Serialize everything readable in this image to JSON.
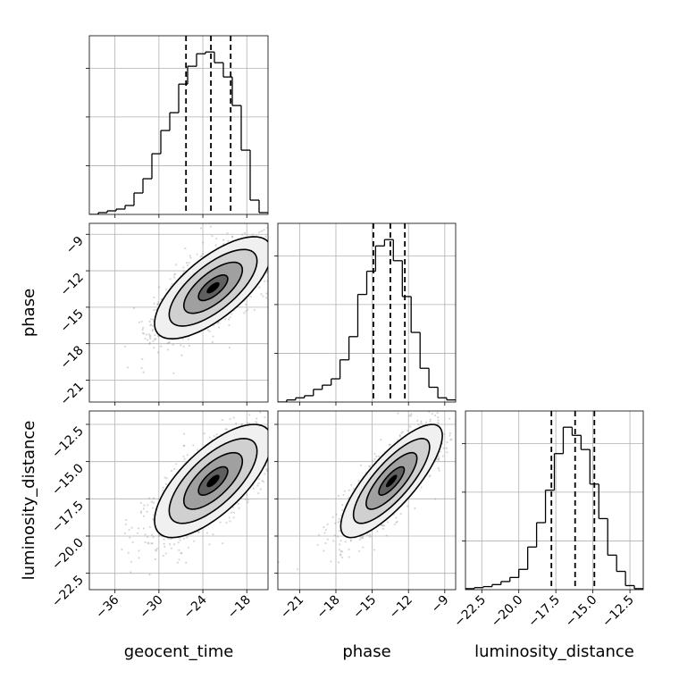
{
  "chart_data": {
    "type": "corner",
    "parameters": [
      "geocent_time",
      "phase",
      "luminosity_distance"
    ],
    "axis_labels": {
      "x": [
        "geocent_time",
        "phase",
        "luminosity_distance"
      ],
      "y": [
        "phase",
        "luminosity_distance"
      ]
    },
    "grid": true,
    "colors": {
      "line": "#000000",
      "samples": "#8c8c8c",
      "grid": "#b0b0b0"
    },
    "ranges": {
      "geocent_time": [
        -39.5,
        -15.1
      ],
      "phase": [
        -22.8,
        -8.1
      ],
      "luminosity_distance": [
        -23.6,
        -11.6
      ]
    },
    "ticks": {
      "geocent_time": {
        "values": [
          -36,
          -30,
          -24,
          -18
        ],
        "labels": [
          "−36",
          "−30",
          "−24",
          "−18"
        ]
      },
      "phase": {
        "values": [
          -21,
          -18,
          -15,
          -12,
          -9
        ],
        "labels": [
          "−21",
          "−18",
          "−15",
          "−12",
          "−9"
        ]
      },
      "luminosity_distance": {
        "values": [
          -22.5,
          -20.0,
          -17.5,
          -15.0,
          -12.5
        ],
        "labels": [
          "−22.5",
          "−20.0",
          "−17.5",
          "−15.0",
          "−12.5"
        ]
      }
    },
    "marginals": [
      {
        "parameter": "geocent_time",
        "quantiles": [
          -26.3,
          -22.9,
          -20.2
        ],
        "bins": [
          -39.5,
          -38.28,
          -37.06,
          -35.84,
          -34.62,
          -33.4,
          -32.18,
          -30.96,
          -29.74,
          -28.52,
          -27.3,
          -26.08,
          -24.86,
          -23.64,
          -22.42,
          -21.2,
          -19.98,
          -18.76,
          -17.54,
          -16.32,
          -15.1
        ],
        "counts": [
          0,
          0.01,
          0.02,
          0.03,
          0.05,
          0.12,
          0.2,
          0.34,
          0.47,
          0.57,
          0.73,
          0.83,
          0.9,
          0.91,
          0.85,
          0.77,
          0.61,
          0.36,
          0.08,
          0.01
        ]
      },
      {
        "parameter": "phase",
        "quantiles": [
          -14.9,
          -13.5,
          -12.3
        ],
        "bins": [
          -22.8,
          -22.07,
          -21.33,
          -20.6,
          -19.86,
          -19.13,
          -18.39,
          -17.66,
          -16.92,
          -16.19,
          -15.45,
          -14.72,
          -13.98,
          -13.25,
          -12.51,
          -11.78,
          -11.04,
          -10.31,
          -9.57,
          -8.84,
          -8.1
        ],
        "counts": [
          0,
          0.01,
          0.02,
          0.03,
          0.06,
          0.08,
          0.11,
          0.2,
          0.31,
          0.51,
          0.62,
          0.74,
          0.77,
          0.67,
          0.5,
          0.33,
          0.16,
          0.07,
          0.02,
          0.01
        ]
      },
      {
        "parameter": "luminosity_distance",
        "quantiles": [
          -17.8,
          -16.2,
          -14.9
        ],
        "bins": [
          -23.6,
          -23.0,
          -22.4,
          -21.8,
          -21.2,
          -20.6,
          -20.0,
          -19.4,
          -18.8,
          -18.2,
          -17.6,
          -17.0,
          -16.4,
          -15.8,
          -15.2,
          -14.6,
          -14.0,
          -13.4,
          -12.8,
          -12.2,
          -11.6
        ],
        "counts": [
          0.005,
          0.01,
          0.015,
          0.025,
          0.04,
          0.06,
          0.1,
          0.21,
          0.33,
          0.49,
          0.67,
          0.8,
          0.76,
          0.69,
          0.52,
          0.35,
          0.17,
          0.09,
          0.02,
          0.005
        ]
      }
    ],
    "joints": [
      {
        "x": "geocent_time",
        "y": "phase",
        "mean": [
          -22.6,
          -13.4
        ],
        "sd": [
          4.0,
          2.1
        ],
        "correlation": 0.7,
        "contours_sigma": [
          0.5,
          1.0,
          1.5,
          2.0
        ]
      },
      {
        "x": "geocent_time",
        "y": "luminosity_distance",
        "mean": [
          -22.6,
          -16.3
        ],
        "sd": [
          4.0,
          1.9
        ],
        "correlation": 0.7,
        "contours_sigma": [
          0.5,
          1.0,
          1.5,
          2.0
        ]
      },
      {
        "x": "phase",
        "y": "luminosity_distance",
        "mean": [
          -13.4,
          -16.3
        ],
        "sd": [
          2.1,
          1.9
        ],
        "correlation": 0.8,
        "contours_sigma": [
          0.5,
          1.0,
          1.5,
          2.0
        ]
      }
    ]
  }
}
